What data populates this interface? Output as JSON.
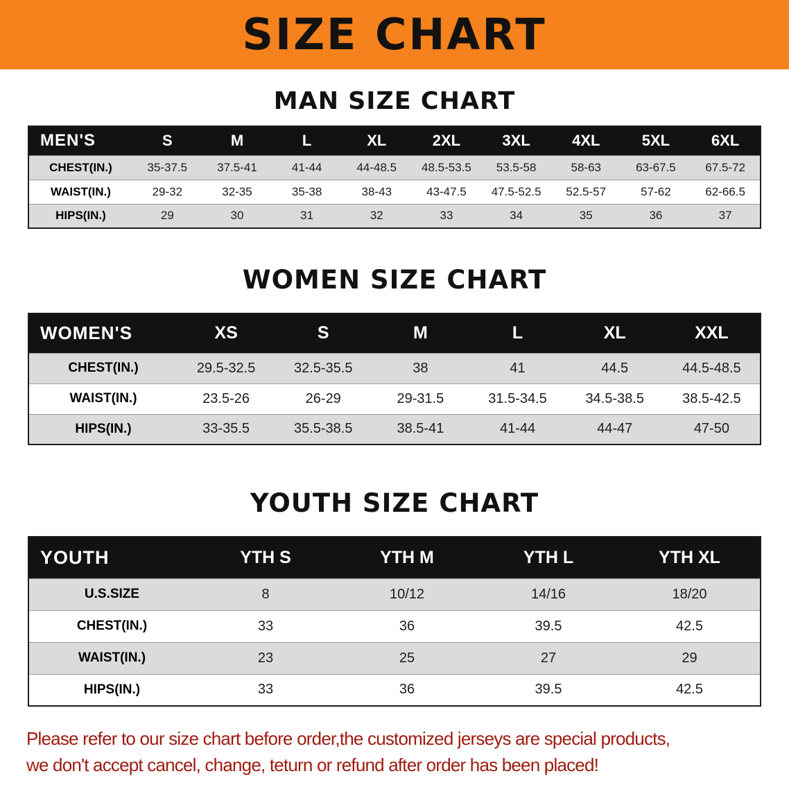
{
  "banner": {
    "title": "SIZE CHART"
  },
  "colors": {
    "banner_bg": "#F6821D",
    "banner_text": "#141210",
    "header_bg": "#121212",
    "header_text": "#FFFFFF",
    "row_alt_bg": "#DBDBDB",
    "row_bg": "#FFFFFF",
    "title_text": "#121212",
    "footer_text": "#9E1B10"
  },
  "chart_data": [
    {
      "type": "table",
      "key": "mens",
      "section_title": "MAN SIZE CHART",
      "columns": [
        "MEN'S",
        "S",
        "M",
        "L",
        "XL",
        "2XL",
        "3XL",
        "4XL",
        "5XL",
        "6XL"
      ],
      "rows": [
        [
          "CHEST(IN.)",
          "35-37.5",
          "37.5-41",
          "41-44",
          "44-48.5",
          "48.5-53.5",
          "53.5-58",
          "58-63",
          "63-67.5",
          "67.5-72"
        ],
        [
          "WAIST(IN.)",
          "29-32",
          "32-35",
          "35-38",
          "38-43",
          "43-47.5",
          "47.5-52.5",
          "52.5-57",
          "57-62",
          "62-66.5"
        ],
        [
          "HIPS(IN.)",
          "29",
          "30",
          "31",
          "32",
          "33",
          "34",
          "35",
          "36",
          "37"
        ]
      ]
    },
    {
      "type": "table",
      "key": "womens",
      "section_title": "WOMEN SIZE CHART",
      "columns": [
        "WOMEN'S",
        "XS",
        "S",
        "M",
        "L",
        "XL",
        "XXL"
      ],
      "rows": [
        [
          "CHEST(IN.)",
          "29.5-32.5",
          "32.5-35.5",
          "38",
          "41",
          "44.5",
          "44.5-48.5"
        ],
        [
          "WAIST(IN.)",
          "23.5-26",
          "26-29",
          "29-31.5",
          "31.5-34.5",
          "34.5-38.5",
          "38.5-42.5"
        ],
        [
          "HIPS(IN.)",
          "33-35.5",
          "35.5-38.5",
          "38.5-41",
          "41-44",
          "44-47",
          "47-50"
        ]
      ]
    },
    {
      "type": "table",
      "key": "youth",
      "section_title": "YOUTH SIZE CHART",
      "columns": [
        "YOUTH",
        "YTH S",
        "YTH M",
        "YTH L",
        "YTH XL"
      ],
      "rows": [
        [
          "U.S.SIZE",
          "8",
          "10/12",
          "14/16",
          "18/20"
        ],
        [
          "CHEST(IN.)",
          "33",
          "36",
          "39.5",
          "42.5"
        ],
        [
          "WAIST(IN.)",
          "23",
          "25",
          "27",
          "29"
        ],
        [
          "HIPS(IN.)",
          "33",
          "36",
          "39.5",
          "42.5"
        ]
      ]
    }
  ],
  "footer": {
    "lines": [
      "Please refer to our size chart before order,the customized jerseys are special products,",
      "we don't accept cancel, change, teturn or refund after order has been placed!"
    ]
  }
}
